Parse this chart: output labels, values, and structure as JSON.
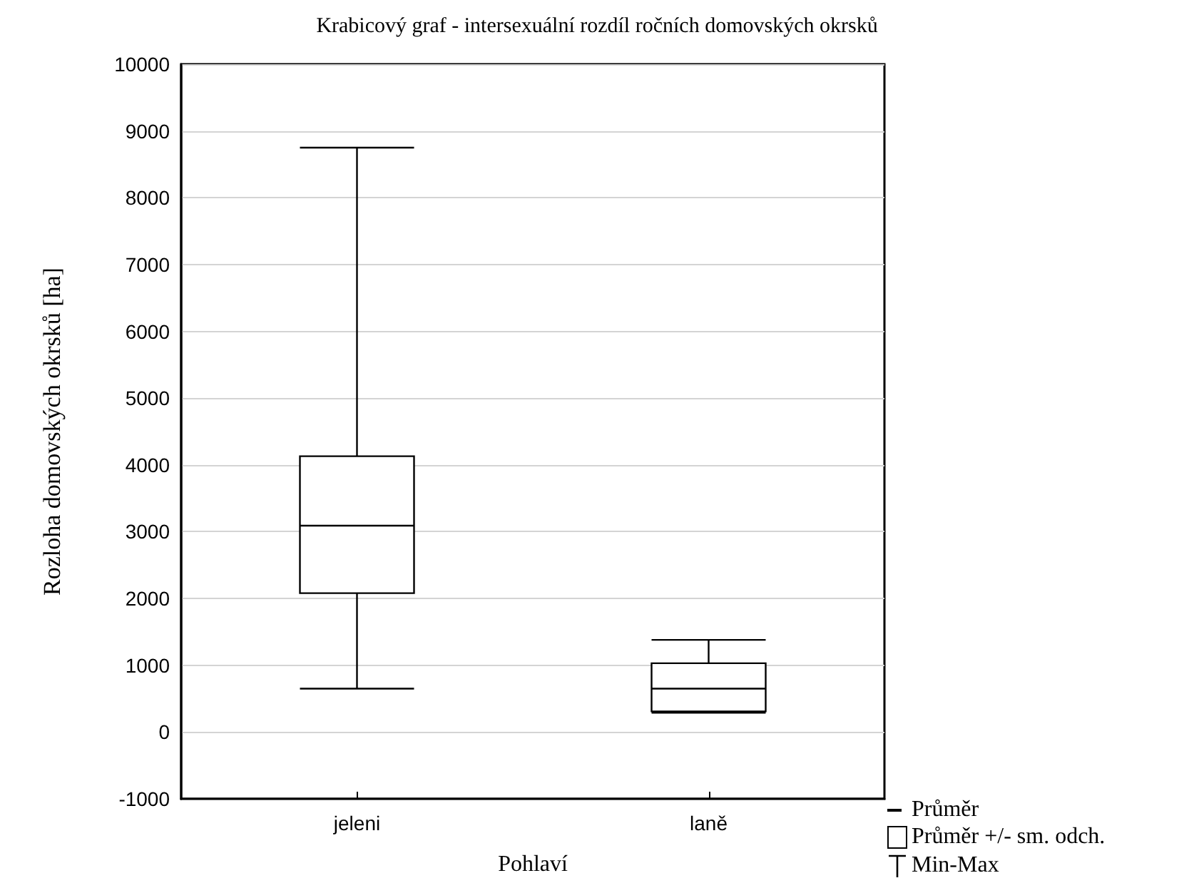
{
  "chart_data": {
    "type": "box",
    "title": "Krabicový graf - intersexuální rozdíl ročních domovských okrsků",
    "xlabel": "Pohlaví",
    "ylabel": "Rozloha domovských okrsků [ha]",
    "categories": [
      "jeleni",
      "laně"
    ],
    "boxes": [
      {
        "low": 650,
        "q1": 2080,
        "median": 3090,
        "q3": 4130,
        "high": 8750
      },
      {
        "low": 290,
        "q1": 310,
        "median": 650,
        "q3": 1030,
        "high": 1380
      }
    ],
    "ylim": [
      -1000,
      10000
    ],
    "yticks": [
      -1000,
      0,
      1000,
      2000,
      3000,
      4000,
      5000,
      6000,
      7000,
      8000,
      9000,
      10000
    ],
    "grid": "y",
    "annotations": [
      "Průměr",
      "Průměr +/- sm. odch.",
      "Min-Max"
    ]
  }
}
